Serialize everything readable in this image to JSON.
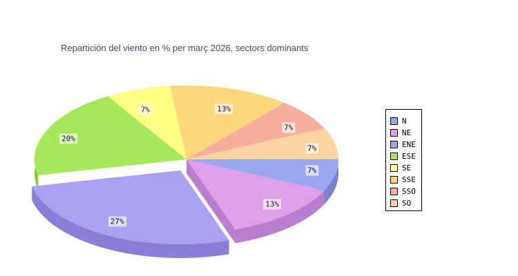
{
  "title": {
    "text": "Repartición del viento en % per març 2026, sectors dominants",
    "color": "#3b4a64"
  },
  "chart_data": {
    "type": "pie",
    "style": "3d-exploded",
    "unit": "%",
    "legend_position": "right",
    "title": "Repartición del viento en % per març 2026, sectors dominants",
    "sectors": [
      {
        "label": "N",
        "value": 7,
        "display": "7%",
        "color": "#99a5f1",
        "side_color": "#7a82cc",
        "exploded": false
      },
      {
        "label": "NE",
        "value": 13,
        "display": "13%",
        "color": "#df9fe8",
        "side_color": "#b97ecf",
        "exploded": false
      },
      {
        "label": "ENE",
        "value": 27,
        "display": "27%",
        "color": "#aaa0f2",
        "side_color": "#8a7ed6",
        "exploded": true
      },
      {
        "label": "ESE",
        "value": 20,
        "display": "20%",
        "color": "#a6e85a",
        "side_color": "#82cb37",
        "exploded": false
      },
      {
        "label": "SE",
        "value": 7,
        "display": "7%",
        "color": "#ffff85",
        "side_color": "#dbdb5e",
        "exploded": false
      },
      {
        "label": "SSE",
        "value": 13,
        "display": "13%",
        "color": "#fbd77e",
        "side_color": "#dcb45e",
        "exploded": false
      },
      {
        "label": "SSO",
        "value": 7,
        "display": "7%",
        "color": "#f6af9a",
        "side_color": "#d98a76",
        "exploded": false
      },
      {
        "label": "SO",
        "value": 7,
        "display": "7%",
        "color": "#fbd2a2",
        "side_color": "#dcae7b",
        "exploded": false
      }
    ]
  }
}
